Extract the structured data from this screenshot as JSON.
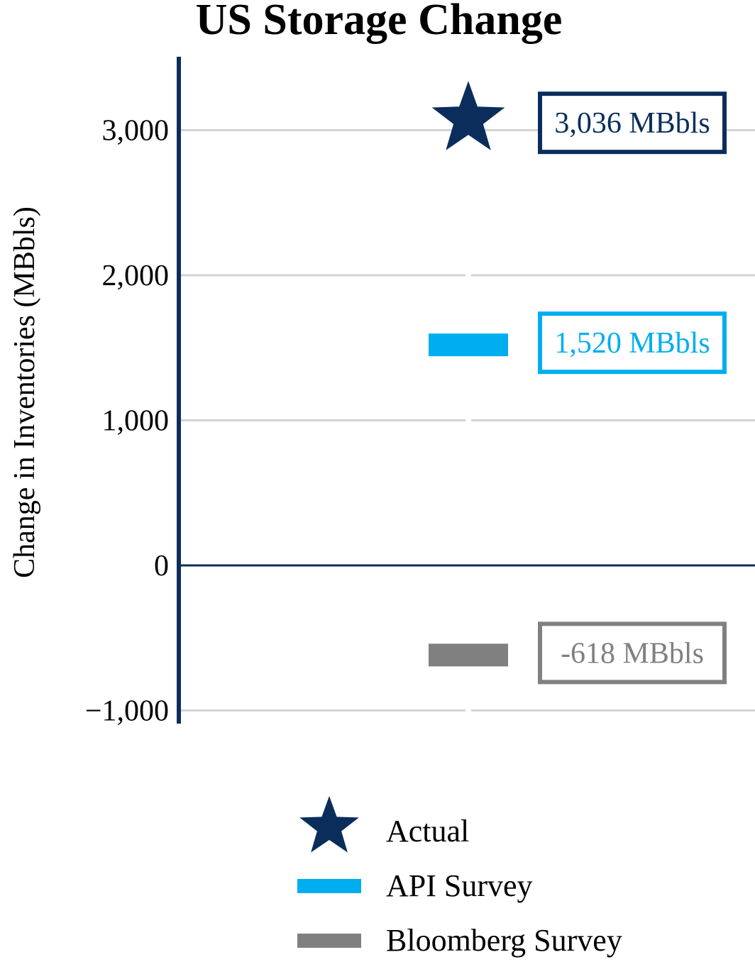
{
  "chart_data": {
    "type": "scatter",
    "title": "US Storage Change",
    "xlabel": "",
    "ylabel": "Change in Inventories (MBbls)",
    "ylim": [
      -1000,
      3500
    ],
    "yticks": [
      -1000,
      0,
      1000,
      2000,
      3000
    ],
    "ytick_labels": [
      "−1,000",
      "0",
      "1,000",
      "2,000",
      "3,000"
    ],
    "grid": true,
    "legend_position": "bottom",
    "series": [
      {
        "name": "Actual",
        "value": 3036,
        "marker": "star",
        "color": "#0b2d5c",
        "label": "3,036 MBbls"
      },
      {
        "name": "API Survey",
        "value": 1520,
        "marker": "bar",
        "color": "#00aeef",
        "label": "1,520 MBbls"
      },
      {
        "name": "Bloomberg Survey",
        "value": -618,
        "marker": "bar",
        "color": "#808080",
        "label": "-618 MBbls"
      }
    ]
  }
}
